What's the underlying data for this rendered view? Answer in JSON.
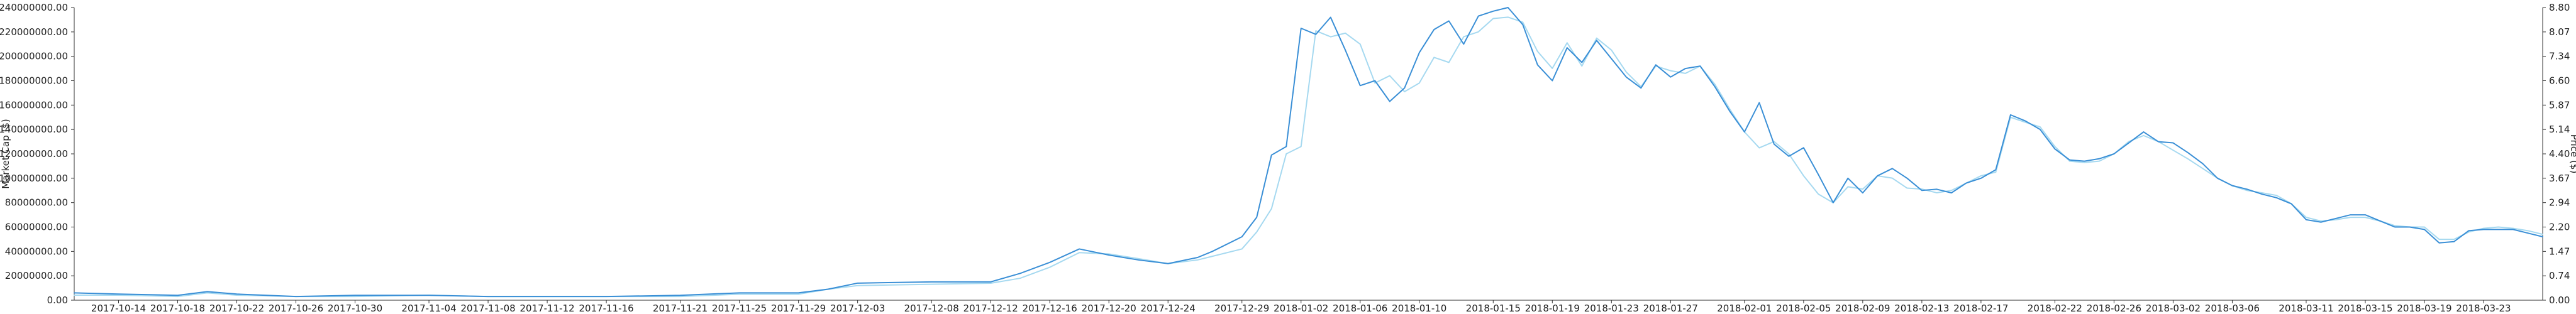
{
  "chart_data": {
    "type": "line",
    "title": "",
    "xlabel": "",
    "ylabel_left": "Market Cap ($)",
    "ylabel_right": "Price ($)",
    "grid": false,
    "legend": "none",
    "x_ticks": [
      "2017-10-14",
      "2017-10-18",
      "2017-10-22",
      "2017-10-26",
      "2017-10-30",
      "2017-11-04",
      "2017-11-08",
      "2017-11-12",
      "2017-11-16",
      "2017-11-21",
      "2017-11-25",
      "2017-11-29",
      "2017-12-03",
      "2017-12-08",
      "2017-12-12",
      "2017-12-16",
      "2017-12-20",
      "2017-12-24",
      "2017-12-29",
      "2018-01-02",
      "2018-01-06",
      "2018-01-10",
      "2018-01-15",
      "2018-01-19",
      "2018-01-23",
      "2018-01-27",
      "2018-02-01",
      "2018-02-05",
      "2018-02-09",
      "2018-02-13",
      "2018-02-17",
      "2018-02-22",
      "2018-02-26",
      "2018-03-02",
      "2018-03-06",
      "2018-03-11",
      "2018-03-15",
      "2018-03-19",
      "2018-03-23"
    ],
    "y_left_ticks": [
      "0.00",
      "20000000.00",
      "40000000.00",
      "60000000.00",
      "80000000.00",
      "100000000.00",
      "120000000.00",
      "140000000.00",
      "160000000.00",
      "180000000.00",
      "200000000.00",
      "220000000.00",
      "240000000.00"
    ],
    "y_right_ticks": [
      "0.00",
      "0.74",
      "1.47",
      "2.20",
      "2.94",
      "3.67",
      "4.40",
      "5.14",
      "5.87",
      "6.60",
      "7.34",
      "8.07",
      "8.80"
    ],
    "ylim_left": [
      0,
      240000000
    ],
    "ylim_right": [
      0,
      8.8
    ],
    "x_range": [
      "2017-10-11",
      "2018-03-27"
    ],
    "series": [
      {
        "role": "market-cap",
        "color": "#3a8fd6",
        "x": [
          "2017-10-11",
          "2017-10-14",
          "2017-10-18",
          "2017-10-20",
          "2017-10-22",
          "2017-10-26",
          "2017-10-30",
          "2017-11-04",
          "2017-11-08",
          "2017-11-12",
          "2017-11-16",
          "2017-11-21",
          "2017-11-25",
          "2017-11-29",
          "2017-12-01",
          "2017-12-03",
          "2017-12-08",
          "2017-12-12",
          "2017-12-14",
          "2017-12-16",
          "2017-12-18",
          "2017-12-20",
          "2017-12-22",
          "2017-12-24",
          "2017-12-26",
          "2017-12-27",
          "2017-12-29",
          "2017-12-30",
          "2017-12-31",
          "2018-01-01",
          "2018-01-02",
          "2018-01-03",
          "2018-01-04",
          "2018-01-05",
          "2018-01-06",
          "2018-01-07",
          "2018-01-08",
          "2018-01-09",
          "2018-01-10",
          "2018-01-11",
          "2018-01-12",
          "2018-01-13",
          "2018-01-14",
          "2018-01-15",
          "2018-01-16",
          "2018-01-17",
          "2018-01-18",
          "2018-01-19",
          "2018-01-20",
          "2018-01-21",
          "2018-01-22",
          "2018-01-23",
          "2018-01-24",
          "2018-01-25",
          "2018-01-26",
          "2018-01-27",
          "2018-01-28",
          "2018-01-29",
          "2018-01-30",
          "2018-01-31",
          "2018-02-01",
          "2018-02-02",
          "2018-02-03",
          "2018-02-04",
          "2018-02-05",
          "2018-02-06",
          "2018-02-07",
          "2018-02-08",
          "2018-02-09",
          "2018-02-10",
          "2018-02-11",
          "2018-02-12",
          "2018-02-13",
          "2018-02-14",
          "2018-02-15",
          "2018-02-16",
          "2018-02-17",
          "2018-02-18",
          "2018-02-19",
          "2018-02-20",
          "2018-02-21",
          "2018-02-22",
          "2018-02-23",
          "2018-02-24",
          "2018-02-25",
          "2018-02-26",
          "2018-02-27",
          "2018-02-28",
          "2018-03-01",
          "2018-03-02",
          "2018-03-03",
          "2018-03-04",
          "2018-03-05",
          "2018-03-06",
          "2018-03-07",
          "2018-03-08",
          "2018-03-09",
          "2018-03-10",
          "2018-03-11",
          "2018-03-12",
          "2018-03-13",
          "2018-03-14",
          "2018-03-15",
          "2018-03-16",
          "2018-03-17",
          "2018-03-18",
          "2018-03-19",
          "2018-03-20",
          "2018-03-21",
          "2018-03-22",
          "2018-03-23",
          "2018-03-24",
          "2018-03-25",
          "2018-03-26",
          "2018-03-27"
        ],
        "values": [
          6000000,
          5000000,
          4000000,
          7000000,
          5000000,
          3000000,
          4000000,
          4000000,
          3000000,
          3000000,
          3000000,
          4000000,
          6000000,
          6000000,
          9000000,
          14000000,
          15000000,
          15000000,
          22000000,
          31000000,
          42000000,
          37000000,
          33000000,
          30000000,
          35000000,
          40000000,
          52000000,
          68000000,
          119000000,
          126000000,
          223000000,
          218000000,
          232000000,
          205000000,
          176000000,
          180000000,
          163000000,
          174000000,
          203000000,
          222000000,
          229000000,
          210000000,
          233000000,
          237000000,
          240000000,
          226000000,
          193000000,
          180000000,
          207000000,
          195000000,
          213000000,
          198000000,
          183000000,
          174000000,
          193000000,
          183000000,
          190000000,
          192000000,
          175000000,
          155000000,
          138000000,
          162000000,
          128000000,
          118000000,
          125000000,
          103000000,
          80000000,
          100000000,
          88000000,
          102000000,
          108000000,
          100000000,
          90000000,
          91000000,
          88000000,
          96000000,
          100000000,
          107000000,
          152000000,
          147000000,
          140000000,
          124000000,
          115000000,
          114000000,
          116000000,
          120000000,
          129000000,
          138000000,
          130000000,
          129000000,
          121000000,
          112000000,
          100000000,
          94000000,
          91000000,
          87000000,
          84000000,
          79000000,
          66000000,
          64000000,
          67000000,
          70000000,
          70000000,
          65000000,
          60000000,
          60000000,
          58000000,
          47000000,
          48000000,
          57000000,
          58000000,
          58000000,
          58000000,
          55000000,
          52000000
        ]
      },
      {
        "role": "price",
        "color": "#a6d9f0",
        "x": [
          "2017-10-11",
          "2017-10-14",
          "2017-10-18",
          "2017-10-20",
          "2017-10-22",
          "2017-10-26",
          "2017-10-30",
          "2017-11-04",
          "2017-11-08",
          "2017-11-12",
          "2017-11-16",
          "2017-11-21",
          "2017-11-25",
          "2017-11-29",
          "2017-12-01",
          "2017-12-03",
          "2017-12-08",
          "2017-12-12",
          "2017-12-14",
          "2017-12-16",
          "2017-12-18",
          "2017-12-20",
          "2017-12-22",
          "2017-12-24",
          "2017-12-26",
          "2017-12-27",
          "2017-12-29",
          "2017-12-30",
          "2017-12-31",
          "2018-01-01",
          "2018-01-02",
          "2018-01-03",
          "2018-01-04",
          "2018-01-05",
          "2018-01-06",
          "2018-01-07",
          "2018-01-08",
          "2018-01-09",
          "2018-01-10",
          "2018-01-11",
          "2018-01-12",
          "2018-01-13",
          "2018-01-14",
          "2018-01-15",
          "2018-01-16",
          "2018-01-17",
          "2018-01-18",
          "2018-01-19",
          "2018-01-20",
          "2018-01-21",
          "2018-01-22",
          "2018-01-23",
          "2018-01-24",
          "2018-01-25",
          "2018-01-26",
          "2018-01-27",
          "2018-01-28",
          "2018-01-29",
          "2018-01-30",
          "2018-01-31",
          "2018-02-01",
          "2018-02-02",
          "2018-02-03",
          "2018-02-04",
          "2018-02-05",
          "2018-02-06",
          "2018-02-07",
          "2018-02-08",
          "2018-02-09",
          "2018-02-10",
          "2018-02-11",
          "2018-02-12",
          "2018-02-13",
          "2018-02-14",
          "2018-02-15",
          "2018-02-16",
          "2018-02-17",
          "2018-02-18",
          "2018-02-19",
          "2018-02-20",
          "2018-02-21",
          "2018-02-22",
          "2018-02-23",
          "2018-02-24",
          "2018-02-25",
          "2018-02-26",
          "2018-02-27",
          "2018-02-28",
          "2018-03-01",
          "2018-03-02",
          "2018-03-03",
          "2018-03-04",
          "2018-03-05",
          "2018-03-06",
          "2018-03-07",
          "2018-03-08",
          "2018-03-09",
          "2018-03-10",
          "2018-03-11",
          "2018-03-12",
          "2018-03-13",
          "2018-03-14",
          "2018-03-15",
          "2018-03-16",
          "2018-03-17",
          "2018-03-18",
          "2018-03-19",
          "2018-03-20",
          "2018-03-21",
          "2018-03-22",
          "2018-03-23",
          "2018-03-24",
          "2018-03-25",
          "2018-03-26",
          "2018-03-27"
        ],
        "values": [
          0.15,
          0.15,
          0.11,
          0.22,
          0.15,
          0.11,
          0.11,
          0.15,
          0.11,
          0.11,
          0.11,
          0.11,
          0.18,
          0.18,
          0.33,
          0.44,
          0.48,
          0.51,
          0.66,
          0.99,
          1.43,
          1.39,
          1.25,
          1.1,
          1.21,
          1.32,
          1.54,
          2.05,
          2.75,
          4.4,
          4.62,
          8.1,
          7.92,
          8.03,
          7.7,
          6.53,
          6.75,
          6.27,
          6.53,
          7.3,
          7.15,
          7.92,
          8.07,
          8.47,
          8.51,
          8.36,
          7.48,
          6.97,
          7.74,
          7.04,
          7.88,
          7.52,
          6.86,
          6.42,
          7.04,
          6.9,
          6.82,
          7.04,
          6.49,
          5.75,
          5.06,
          4.58,
          4.77,
          4.4,
          3.74,
          3.19,
          2.93,
          3.41,
          3.34,
          3.74,
          3.67,
          3.37,
          3.34,
          3.23,
          3.3,
          3.52,
          3.74,
          3.85,
          5.5,
          5.35,
          5.21,
          4.62,
          4.18,
          4.14,
          4.18,
          4.4,
          4.77,
          4.95,
          4.77,
          4.51,
          4.25,
          3.96,
          3.67,
          3.44,
          3.3,
          3.23,
          3.15,
          2.9,
          2.49,
          2.38,
          2.42,
          2.49,
          2.49,
          2.38,
          2.24,
          2.2,
          2.2,
          1.83,
          1.83,
          2.05,
          2.16,
          2.2,
          2.16,
          2.09,
          1.98
        ]
      }
    ]
  }
}
